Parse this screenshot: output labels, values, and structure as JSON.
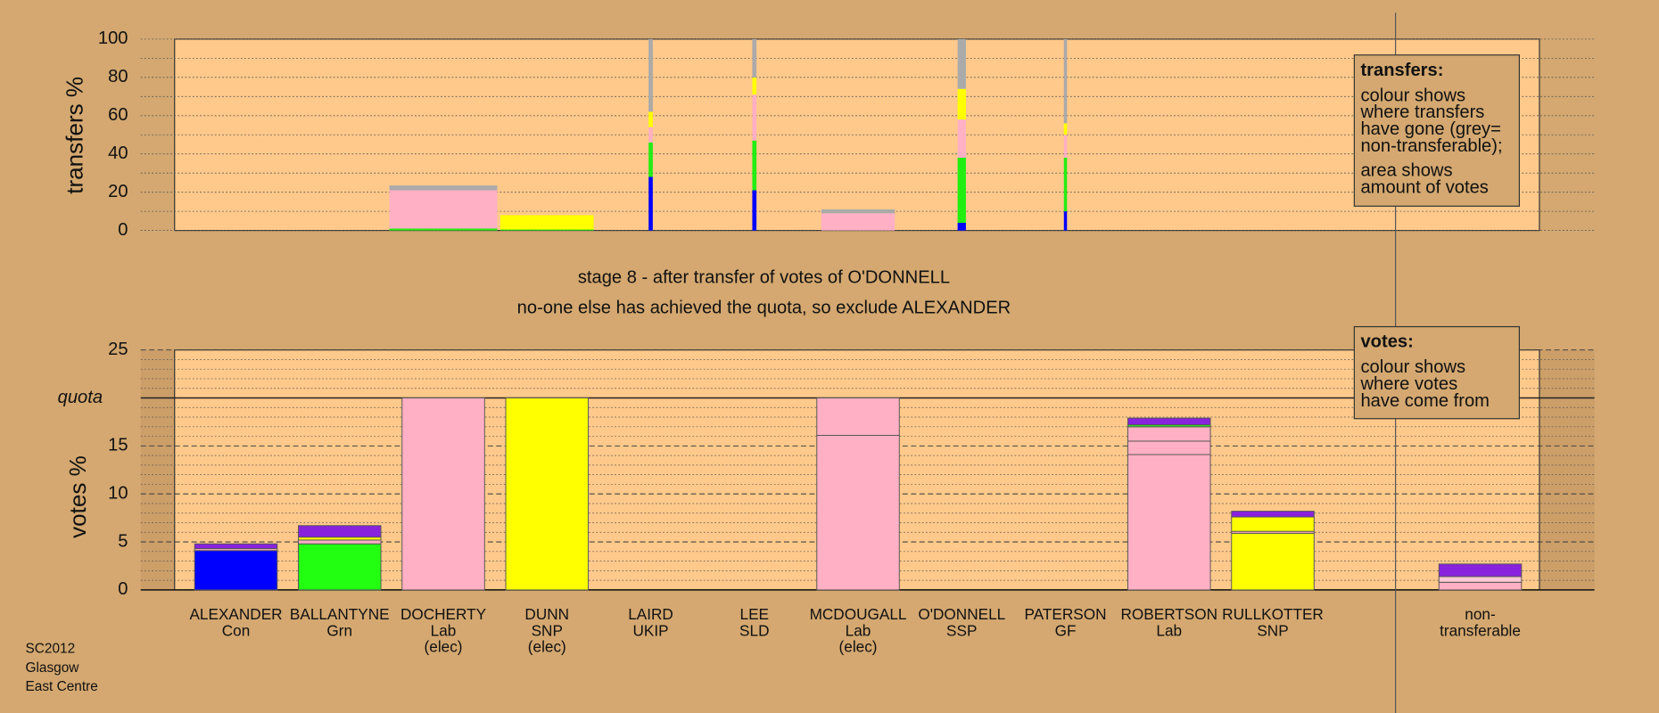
{
  "chart_data": [
    {
      "type": "stacked_bar",
      "ylabel": "transfers %",
      "ylim": [
        0,
        100
      ],
      "yticks": [
        0,
        20,
        40,
        60,
        80,
        100
      ],
      "grid": true,
      "legend": {
        "title": "transfers:",
        "lines": [
          "colour shows",
          "where transfers",
          "have gone (grey=",
          "non-transferable);",
          "area shows",
          "amount of votes"
        ]
      },
      "widths": [
        null,
        null,
        1.04,
        0.9,
        0.04,
        0.04,
        0.71,
        0.08,
        0.03,
        null,
        null,
        null
      ],
      "stacks": [
        [],
        [],
        [
          {
            "value": 1,
            "color": "#22ee11"
          },
          {
            "value": 20,
            "color": "#ffb0c4"
          },
          {
            "value": 2.5,
            "color": "#aaaaaa"
          }
        ],
        [
          {
            "value": 0.5,
            "color": "#22ee11"
          },
          {
            "value": 7.5,
            "color": "#ffff00"
          }
        ],
        [
          {
            "value": 28,
            "color": "#0000ff"
          },
          {
            "value": 18,
            "color": "#22ee11"
          },
          {
            "value": 8,
            "color": "#ffb0c4"
          },
          {
            "value": 8,
            "color": "#ffff00"
          },
          {
            "value": 38,
            "color": "#aaaaaa"
          }
        ],
        [
          {
            "value": 21,
            "color": "#0000ff"
          },
          {
            "value": 26,
            "color": "#22ee11"
          },
          {
            "value": 24,
            "color": "#ffb0c4"
          },
          {
            "value": 9,
            "color": "#ffff00"
          },
          {
            "value": 20,
            "color": "#aaaaaa"
          }
        ],
        [
          {
            "value": 9,
            "color": "#ffb0c4"
          },
          {
            "value": 2,
            "color": "#aaaaaa"
          }
        ],
        [
          {
            "value": 4,
            "color": "#0000ff"
          },
          {
            "value": 34,
            "color": "#22ee11"
          },
          {
            "value": 20,
            "color": "#ffb0c4"
          },
          {
            "value": 16,
            "color": "#ffff00"
          },
          {
            "value": 26,
            "color": "#aaaaaa"
          }
        ],
        [
          {
            "value": 10,
            "color": "#0000ff"
          },
          {
            "value": 28,
            "color": "#22ee11"
          },
          {
            "value": 12,
            "color": "#ffb0c4"
          },
          {
            "value": 6,
            "color": "#ffff00"
          },
          {
            "value": 44,
            "color": "#aaaaaa"
          }
        ],
        [],
        [],
        []
      ]
    },
    {
      "type": "stacked_bar",
      "title": "stage 8 - after transfer of votes of O'DONNELL",
      "subtitle": "no-one else has achieved the quota, so exclude ALEXANDER",
      "ylabel": "votes %",
      "ylim": [
        0,
        25
      ],
      "yticks": [
        0,
        5,
        10,
        15,
        {
          "value": 20,
          "label": "quota"
        },
        25
      ],
      "grid": true,
      "legend": {
        "title": "votes:",
        "lines": [
          "colour shows",
          "where votes",
          "have come from"
        ]
      },
      "categories": [
        [
          "ALEXANDER",
          "Con"
        ],
        [
          "BALLANTYNE",
          "Grn"
        ],
        [
          "DOCHERTY",
          "Lab",
          "(elec)"
        ],
        [
          "DUNN",
          "SNP",
          "(elec)"
        ],
        [
          "LAIRD",
          "UKIP"
        ],
        [
          "LEE",
          "SLD"
        ],
        [
          "MCDOUGALL",
          "Lab",
          "(elec)"
        ],
        [
          "O'DONNELL",
          "SSP"
        ],
        [
          "PATERSON",
          "GF"
        ],
        [
          "ROBERTSON",
          "Lab"
        ],
        [
          "RULLKOTTER",
          "SNP"
        ],
        [
          "non-",
          "transferable"
        ]
      ],
      "stacks": [
        [
          {
            "value": 4.1,
            "color": "#0000ff"
          },
          {
            "value": 0.2,
            "color": "#ffb0c4"
          },
          {
            "value": 0.5,
            "color": "#8822dd"
          }
        ],
        [
          {
            "value": 4.8,
            "color": "#22ff11"
          },
          {
            "value": 0.4,
            "color": "#ffb0c4"
          },
          {
            "value": 0.3,
            "color": "#ffff00"
          },
          {
            "value": 1.2,
            "color": "#8822dd"
          }
        ],
        [
          {
            "value": 20,
            "color": "#ffb0c4"
          }
        ],
        [
          {
            "value": 20,
            "color": "#ffff00"
          }
        ],
        [],
        [],
        [
          {
            "value": 16.1,
            "color": "#ffb0c4"
          },
          {
            "value": 3.9,
            "color": "#ffb0c4"
          }
        ],
        [],
        [],
        [
          {
            "value": 14.1,
            "color": "#ffb0c4"
          },
          {
            "value": 1.4,
            "color": "#ffb0c4"
          },
          {
            "value": 1.5,
            "color": "#ffb0c4"
          },
          {
            "value": 0.2,
            "color": "#22ff11"
          },
          {
            "value": 0.7,
            "color": "#8822dd"
          }
        ],
        [
          {
            "value": 5.9,
            "color": "#ffff00"
          },
          {
            "value": 0.2,
            "color": "#ffb0c4"
          },
          {
            "value": 1.5,
            "color": "#ffff00"
          },
          {
            "value": 0.6,
            "color": "#8822dd"
          }
        ],
        [
          {
            "value": 0.8,
            "color": "#ffb0c4"
          },
          {
            "value": 0.6,
            "color": "#ffc8d4"
          },
          {
            "value": 1.3,
            "color": "#8822dd"
          }
        ]
      ]
    },
    {
      "type": "note",
      "lines": [
        "SC2012",
        "Glasgow",
        "East Centre"
      ]
    }
  ]
}
